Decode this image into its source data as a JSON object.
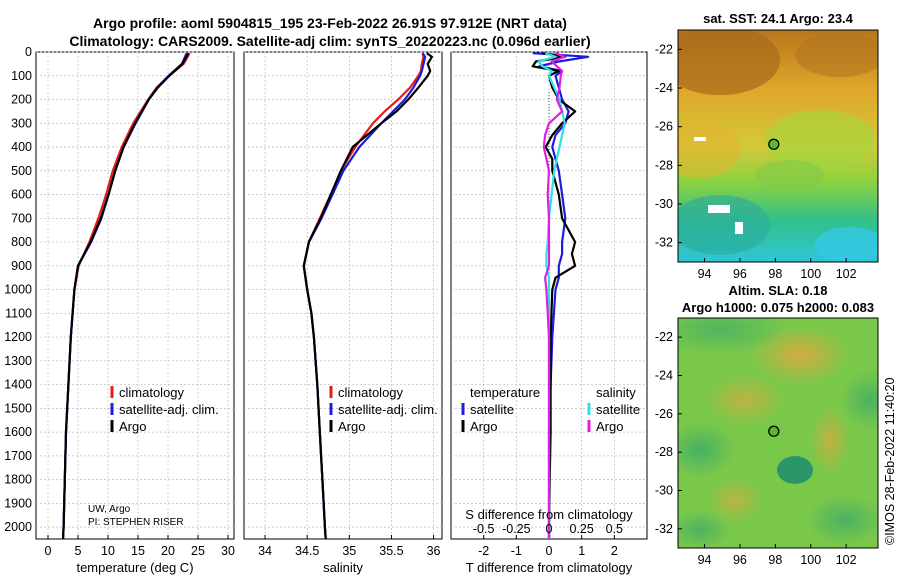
{
  "header": {
    "title_line1": "Argo profile: aoml 5904815_195 23-Feb-2022 26.91S 97.912E (NRT data)",
    "title_line2": "Climatology: CARS2009. Satellite-adj clim: synTS_20220223.nc (0.096d earlier)"
  },
  "sst_map": {
    "title": "sat. SST: 24.1 Argo: 23.4",
    "lon_ticks": [
      "94",
      "96",
      "98",
      "100",
      "102"
    ],
    "lat_ticks": [
      "-22",
      "-24",
      "-26",
      "-28",
      "-30",
      "-32"
    ],
    "marker": {
      "lon": 97.912,
      "lat": -26.91
    }
  },
  "sla_map": {
    "title_line1": "Altim. SLA: 0.18",
    "title_line2": "Argo h1000: 0.075 h2000: 0.083",
    "lon_ticks": [
      "94",
      "96",
      "98",
      "100",
      "102"
    ],
    "lat_ticks": [
      "-22",
      "-24",
      "-26",
      "-28",
      "-30",
      "-32"
    ],
    "marker": {
      "lon": 97.912,
      "lat": -26.91
    }
  },
  "annotations": {
    "source": "UW, Argo",
    "pi": "PI: STEPHEN RISER",
    "watermark": "©IMOS 28-Feb-2022 11:40:20"
  },
  "colors": {
    "climatology": "#e8191a",
    "satellite": "#1c1cdc",
    "argo": "#000000",
    "sal_satellite": "#2ee0e8",
    "sal_argo": "#e020e0"
  },
  "chart_data": [
    {
      "type": "line",
      "title": "",
      "xlabel": "temperature (deg C)",
      "ylabel": "",
      "xlim": [
        -2,
        31
      ],
      "ylim": [
        2050,
        0
      ],
      "x_ticks": [
        "0",
        "5",
        "10",
        "15",
        "20",
        "25",
        "30"
      ],
      "y_ticks": [
        "0",
        "100",
        "200",
        "300",
        "400",
        "500",
        "600",
        "700",
        "800",
        "900",
        "1000",
        "1100",
        "1200",
        "1300",
        "1400",
        "1500",
        "1600",
        "1700",
        "1800",
        "1900",
        "2000"
      ],
      "legend": [
        "climatology",
        "satellite-adj. clim.",
        "Argo"
      ],
      "depth": [
        5,
        50,
        100,
        150,
        200,
        300,
        400,
        500,
        600,
        700,
        800,
        900,
        1000,
        1200,
        1400,
        1600,
        1800,
        2000,
        2050
      ],
      "series": [
        {
          "name": "climatology",
          "values": [
            23.6,
            22.6,
            20.2,
            18.1,
            16.7,
            14.2,
            12.3,
            10.8,
            9.7,
            8.4,
            6.9,
            5.1,
            4.4,
            3.8,
            3.4,
            3.0,
            2.8,
            2.6,
            2.5
          ]
        },
        {
          "name": "satellite-adj. clim.",
          "values": [
            23.1,
            22.3,
            20.1,
            18.2,
            16.8,
            14.6,
            12.6,
            11.2,
            10.1,
            8.9,
            7.2,
            5.0,
            4.4,
            3.8,
            3.4,
            3.0,
            2.8,
            2.6,
            2.5
          ]
        },
        {
          "name": "Argo",
          "values": [
            23.4,
            22.4,
            20.2,
            18.3,
            16.8,
            14.5,
            12.6,
            11.2,
            10.1,
            8.8,
            7.1,
            5.0,
            4.4,
            3.8,
            3.4,
            3.0,
            2.8,
            2.6,
            2.5
          ]
        }
      ]
    },
    {
      "type": "line",
      "title": "",
      "xlabel": "salinity",
      "ylabel": "",
      "xlim": [
        33.75,
        36.1
      ],
      "ylim": [
        2050,
        0
      ],
      "x_ticks": [
        "34",
        "34.5",
        "35",
        "35.5",
        "36"
      ],
      "legend": [
        "climatology",
        "satellite-adj. clim.",
        "Argo"
      ],
      "depth": [
        5,
        20,
        50,
        80,
        100,
        150,
        200,
        250,
        300,
        400,
        500,
        600,
        700,
        800,
        900,
        1000,
        1100,
        1200,
        1400,
        1600,
        1800,
        2000,
        2050
      ],
      "series": [
        {
          "name": "climatology",
          "values": [
            35.87,
            35.88,
            35.86,
            35.85,
            35.82,
            35.72,
            35.58,
            35.42,
            35.28,
            35.07,
            34.9,
            34.78,
            34.65,
            34.52,
            34.46,
            34.5,
            34.55,
            34.58,
            34.62,
            34.65,
            34.68,
            34.71,
            34.72
          ]
        },
        {
          "name": "satellite-adj. clim.",
          "values": [
            35.87,
            35.9,
            35.88,
            35.86,
            35.84,
            35.76,
            35.66,
            35.52,
            35.38,
            35.12,
            34.93,
            34.8,
            34.67,
            34.52,
            34.46,
            34.5,
            34.55,
            34.58,
            34.62,
            34.65,
            34.68,
            34.71,
            34.72
          ]
        },
        {
          "name": "Argo",
          "values": [
            35.92,
            35.98,
            35.93,
            35.96,
            35.93,
            35.82,
            35.7,
            35.56,
            35.38,
            35.04,
            34.9,
            34.78,
            34.66,
            34.52,
            34.46,
            34.5,
            34.55,
            34.58,
            34.62,
            34.65,
            34.68,
            34.71,
            34.72
          ]
        }
      ]
    },
    {
      "type": "line",
      "title": "",
      "xlabel": "T difference from climatology",
      "ylabel": "",
      "xlim": [
        -3,
        3
      ],
      "ylim": [
        2050,
        0
      ],
      "x_ticks": [
        "-2",
        "-1",
        "0",
        "1",
        "2"
      ],
      "secondary_xlabel": "S difference from climatology",
      "secondary_x_ticks": [
        "-0.5",
        "-0.25",
        "0",
        "0.25",
        "0.5"
      ],
      "secondary_xlim": [
        -0.75,
        0.75
      ],
      "legend_temperature_title": "temperature",
      "legend_salinity_title": "salinity",
      "legend": [
        "satellite",
        "Argo",
        "satellite",
        "Argo"
      ],
      "depth": [
        5,
        20,
        40,
        60,
        80,
        100,
        150,
        200,
        250,
        300,
        350,
        400,
        450,
        500,
        600,
        700,
        800,
        850,
        900,
        950,
        1000,
        1200,
        1400,
        1600,
        1800,
        2000,
        2050
      ],
      "series": [
        {
          "name": "temperature satellite",
          "values": [
            -0.5,
            1.2,
            0.3,
            -0.3,
            0.4,
            0.2,
            0.3,
            0.4,
            0.6,
            0.5,
            0.2,
            0.1,
            0.2,
            0.3,
            0.4,
            0.5,
            0.4,
            0.4,
            0.3,
            0.3,
            0.2,
            0.1,
            0.05,
            0.0,
            0.0,
            0.0,
            0.0
          ]
        },
        {
          "name": "temperature Argo",
          "values": [
            -0.2,
            0.5,
            -0.4,
            -0.5,
            0.3,
            0.0,
            0.1,
            0.3,
            0.8,
            0.4,
            0.1,
            -0.1,
            0.1,
            0.1,
            0.3,
            0.4,
            0.8,
            0.7,
            0.8,
            0.2,
            0.1,
            0.05,
            0.05,
            0.05,
            0.02,
            0.0,
            0.0
          ]
        },
        {
          "name": "salinity satellite",
          "values": [
            -0.03,
            0.05,
            -0.08,
            -0.05,
            0.02,
            0.0,
            0.04,
            0.08,
            0.1,
            0.12,
            0.1,
            0.08,
            0.06,
            0.04,
            0.02,
            0.0,
            -0.01,
            -0.02,
            -0.02,
            0.0,
            0.0,
            0.0,
            0.0,
            0.0,
            0.0,
            0.0,
            0.0
          ]
        },
        {
          "name": "salinity Argo",
          "values": [
            0.05,
            0.12,
            0.02,
            0.06,
            0.1,
            0.09,
            0.08,
            0.06,
            0.1,
            0.0,
            -0.03,
            -0.04,
            -0.02,
            0.0,
            -0.01,
            0.0,
            0.0,
            0.0,
            0.0,
            -0.03,
            -0.02,
            0.0,
            0.0,
            0.0,
            0.0,
            0.0,
            0.0
          ]
        }
      ]
    }
  ]
}
